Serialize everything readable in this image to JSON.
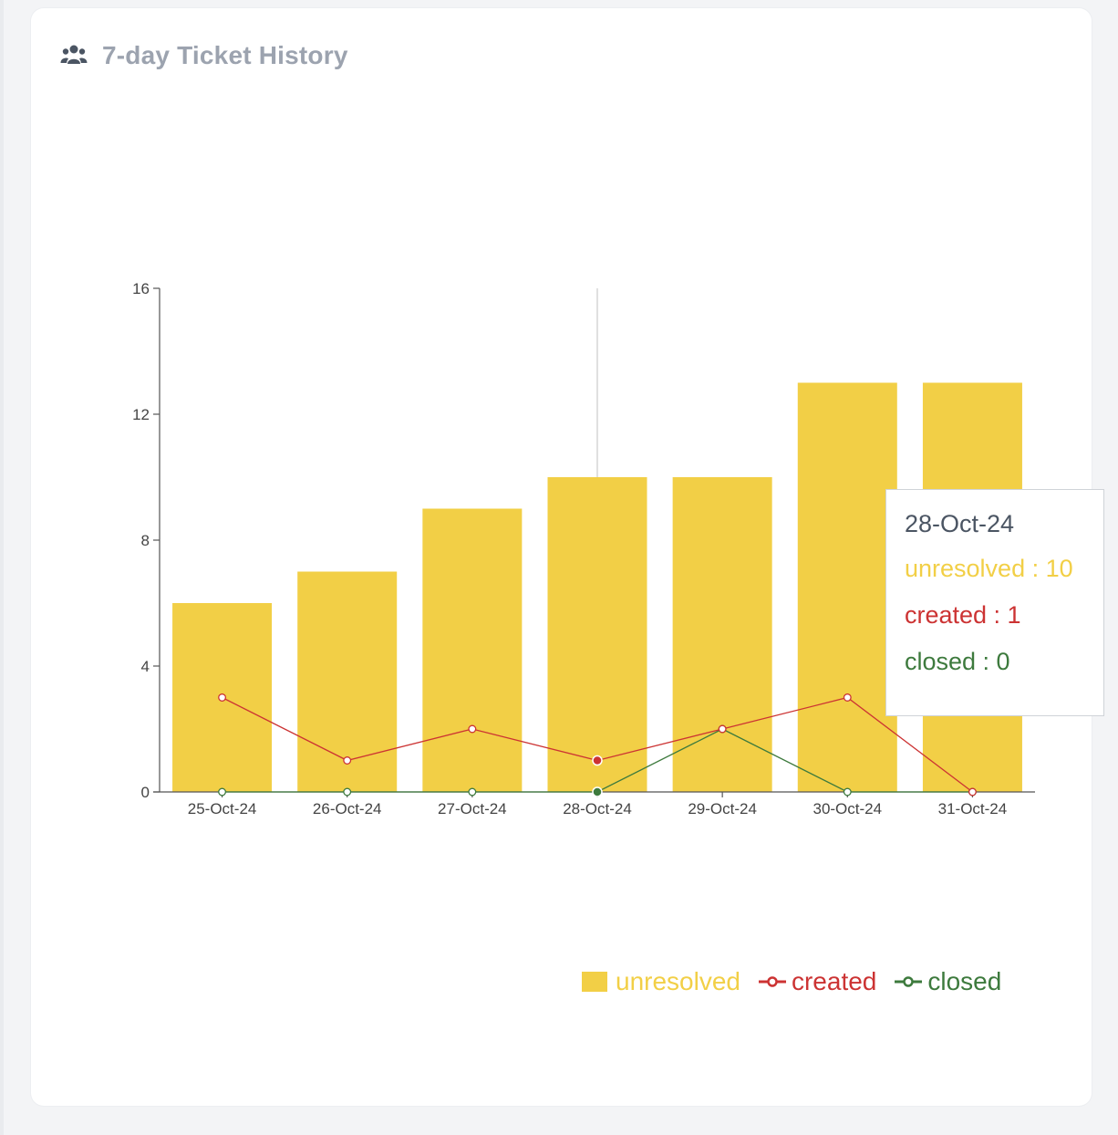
{
  "header": {
    "title": "7-day Ticket History",
    "icon": "users-icon"
  },
  "colors": {
    "unresolved": "#f2cf46",
    "created": "#cc3333",
    "closed": "#3d7a3d",
    "axis": "#555555",
    "text": "#444444"
  },
  "chart_data": {
    "type": "bar",
    "categories": [
      "25-Oct-24",
      "26-Oct-24",
      "27-Oct-24",
      "28-Oct-24",
      "29-Oct-24",
      "30-Oct-24",
      "31-Oct-24"
    ],
    "series": [
      {
        "name": "unresolved",
        "type": "bar",
        "values": [
          6,
          7,
          9,
          10,
          10,
          13,
          13
        ]
      },
      {
        "name": "created",
        "type": "line",
        "values": [
          3,
          1,
          2,
          1,
          2,
          3,
          0
        ]
      },
      {
        "name": "closed",
        "type": "line",
        "values": [
          0,
          0,
          0,
          0,
          2,
          0,
          0
        ]
      }
    ],
    "ylim": [
      0,
      16
    ],
    "yticks": [
      "0",
      "4",
      "8",
      "12",
      "16"
    ],
    "legend": [
      "unresolved",
      "created",
      "closed"
    ],
    "legend_position": "bottom-right",
    "hover_index": 3
  },
  "tooltip": {
    "date": "28-Oct-24",
    "unresolved": "unresolved : 10",
    "created": "created : 1",
    "closed": "closed : 0"
  },
  "legend": {
    "unresolved": "unresolved",
    "created": "created",
    "closed": "closed"
  }
}
